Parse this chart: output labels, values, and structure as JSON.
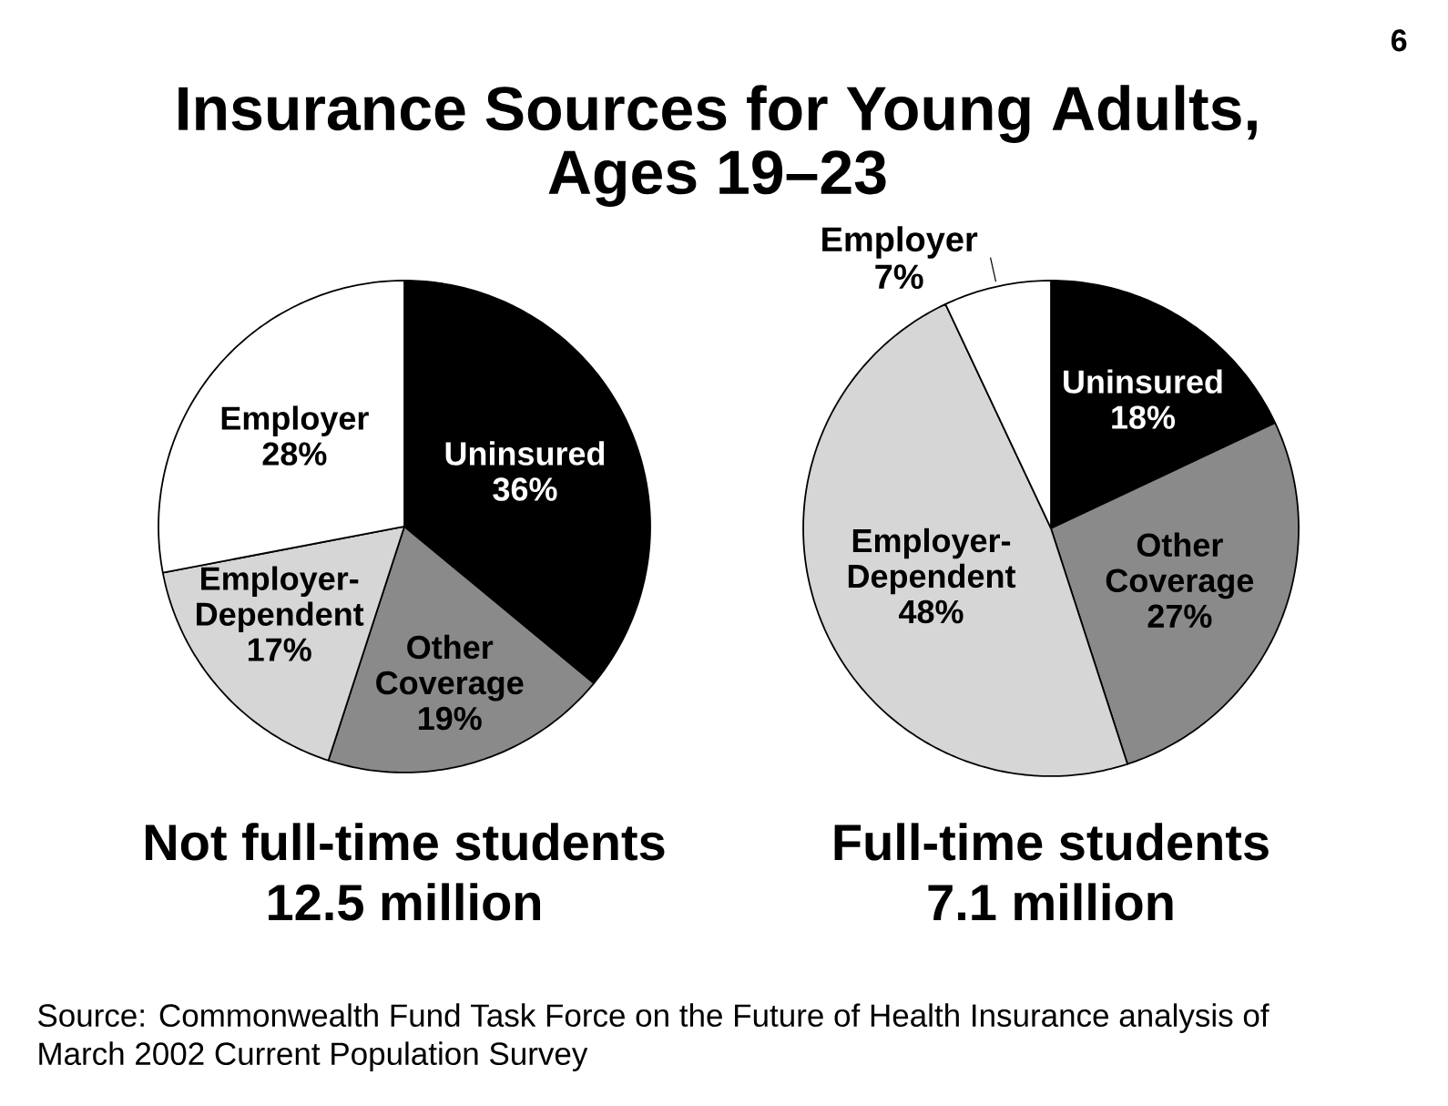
{
  "chart_data": [
    {
      "type": "pie",
      "title": "Insurance Sources for Young Adults, Ages 19–23",
      "categories": [
        "Uninsured",
        "Other Coverage",
        "Employer-Dependent",
        "Employer"
      ],
      "values": [
        36,
        19,
        17,
        28
      ],
      "colors": [
        "#000000",
        "#8a8a8a",
        "#d6d6d6",
        "#ffffff"
      ],
      "value_labels": [
        "36%",
        "19%",
        "17%",
        "28%"
      ],
      "xlabel": "Not full-time students 12.5 million",
      "annotations": [
        "6",
        "Source: Commonwealth Fund Task Force on the Future of Health Insurance analysis of March 2002 Current Population Survey"
      ]
    },
    {
      "type": "pie",
      "categories": [
        "Uninsured",
        "Other Coverage",
        "Employer-Dependent",
        "Employer"
      ],
      "values": [
        18,
        27,
        48,
        7
      ],
      "colors": [
        "#000000",
        "#8a8a8a",
        "#d6d6d6",
        "#ffffff"
      ],
      "value_labels": [
        "18%",
        "27%",
        "48%",
        "7%"
      ],
      "xlabel": "Full-time students 7.1 million"
    }
  ]
}
